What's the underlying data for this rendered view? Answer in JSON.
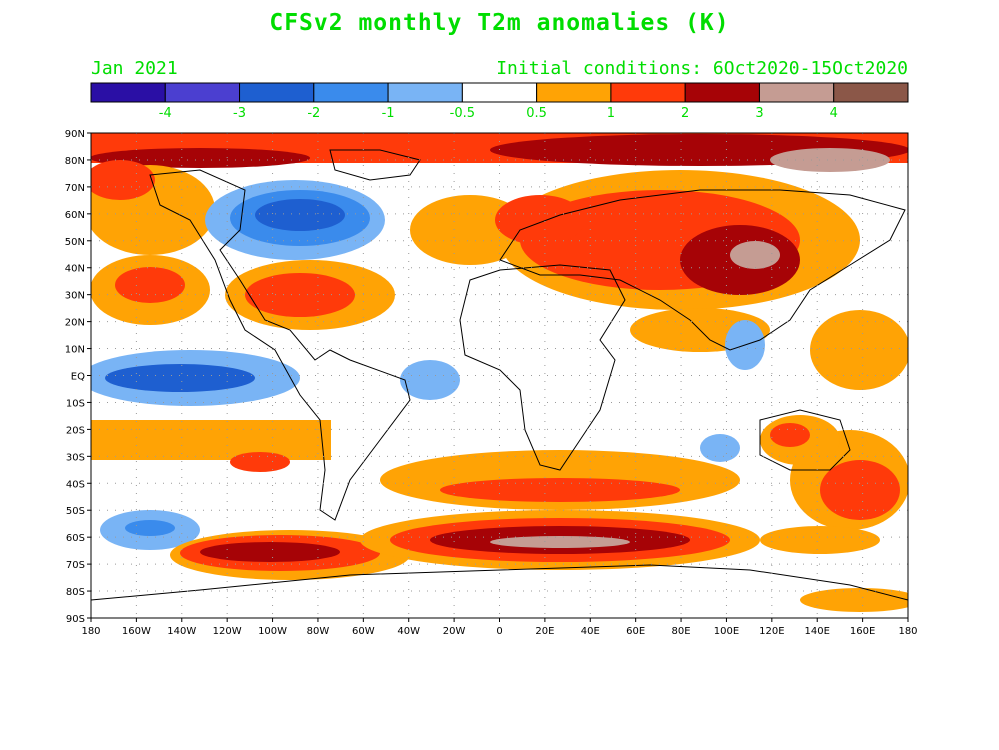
{
  "title": "CFSv2 monthly T2m anomalies (K)",
  "subtitle_left": "Jan 2021",
  "subtitle_right": "Initial conditions: 6Oct2020-15Oct2020",
  "colorbar": {
    "colors": [
      "#2a0fa5",
      "#4b3fd0",
      "#1e5fd0",
      "#3a8bec",
      "#79b4f5",
      "#ffffff",
      "#ffa305",
      "#ff3a0a",
      "#a60306",
      "#c59c93",
      "#8b5748"
    ],
    "labels": [
      "-4",
      "-3",
      "-2",
      "-1",
      "-0.5",
      "0.5",
      "1",
      "2",
      "3",
      "4"
    ],
    "label_color": "#00dd00"
  },
  "map": {
    "lat_labels": [
      "90N",
      "80N",
      "70N",
      "60N",
      "50N",
      "40N",
      "30N",
      "20N",
      "10N",
      "EQ",
      "10S",
      "20S",
      "30S",
      "40S",
      "50S",
      "60S",
      "70S",
      "80S",
      "90S"
    ],
    "lon_labels": [
      "180",
      "160W",
      "140W",
      "120W",
      "100W",
      "80W",
      "60W",
      "40W",
      "20W",
      "0",
      "20E",
      "40E",
      "60E",
      "80E",
      "100E",
      "120E",
      "140E",
      "160E",
      "180"
    ]
  }
}
